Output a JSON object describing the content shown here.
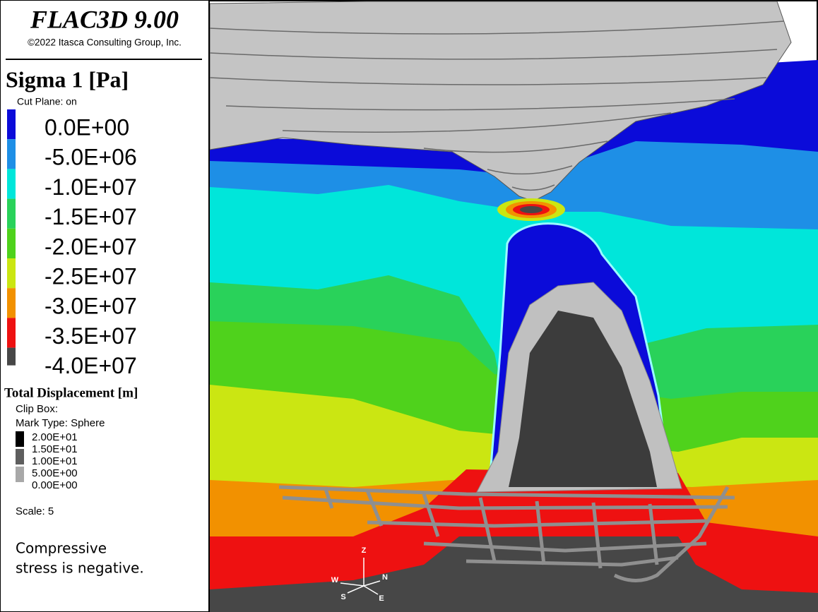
{
  "header": {
    "title": "FLAC3D 9.00",
    "copyright": "©2022 Itasca Consulting Group, Inc."
  },
  "stress_legend": {
    "title": "Sigma 1 [Pa]",
    "cut_plane": "Cut Plane: on",
    "levels": [
      {
        "label": "0.0E+00",
        "color": "#0b0bd9"
      },
      {
        "label": "-5.0E+06",
        "color": "#1e8fe6"
      },
      {
        "label": "-1.0E+07",
        "color": "#00e6da"
      },
      {
        "label": "-1.5E+07",
        "color": "#29d25a"
      },
      {
        "label": "-2.0E+07",
        "color": "#4fd21c"
      },
      {
        "label": "-2.5E+07",
        "color": "#cbe612"
      },
      {
        "label": "-3.0E+07",
        "color": "#f29100"
      },
      {
        "label": "-3.5E+07",
        "color": "#ee1111"
      },
      {
        "label": "-4.0E+07",
        "color": "#474747"
      }
    ]
  },
  "displacement_legend": {
    "title": "Total Displacement [m]",
    "clip_box": "Clip Box:",
    "mark_type": "Mark Type: Sphere",
    "levels": [
      "2.00E+01",
      "1.50E+01",
      "1.00E+01",
      "5.00E+00",
      "0.00E+00"
    ],
    "bar_colors": [
      "#000000",
      "#5e5e5e",
      "#a8a8a8"
    ],
    "scale": "Scale: 5"
  },
  "note": [
    "Compressive",
    "stress is negative."
  ],
  "axes": {
    "z": "Z",
    "w": "W",
    "n": "N",
    "s": "S",
    "e": "E"
  }
}
